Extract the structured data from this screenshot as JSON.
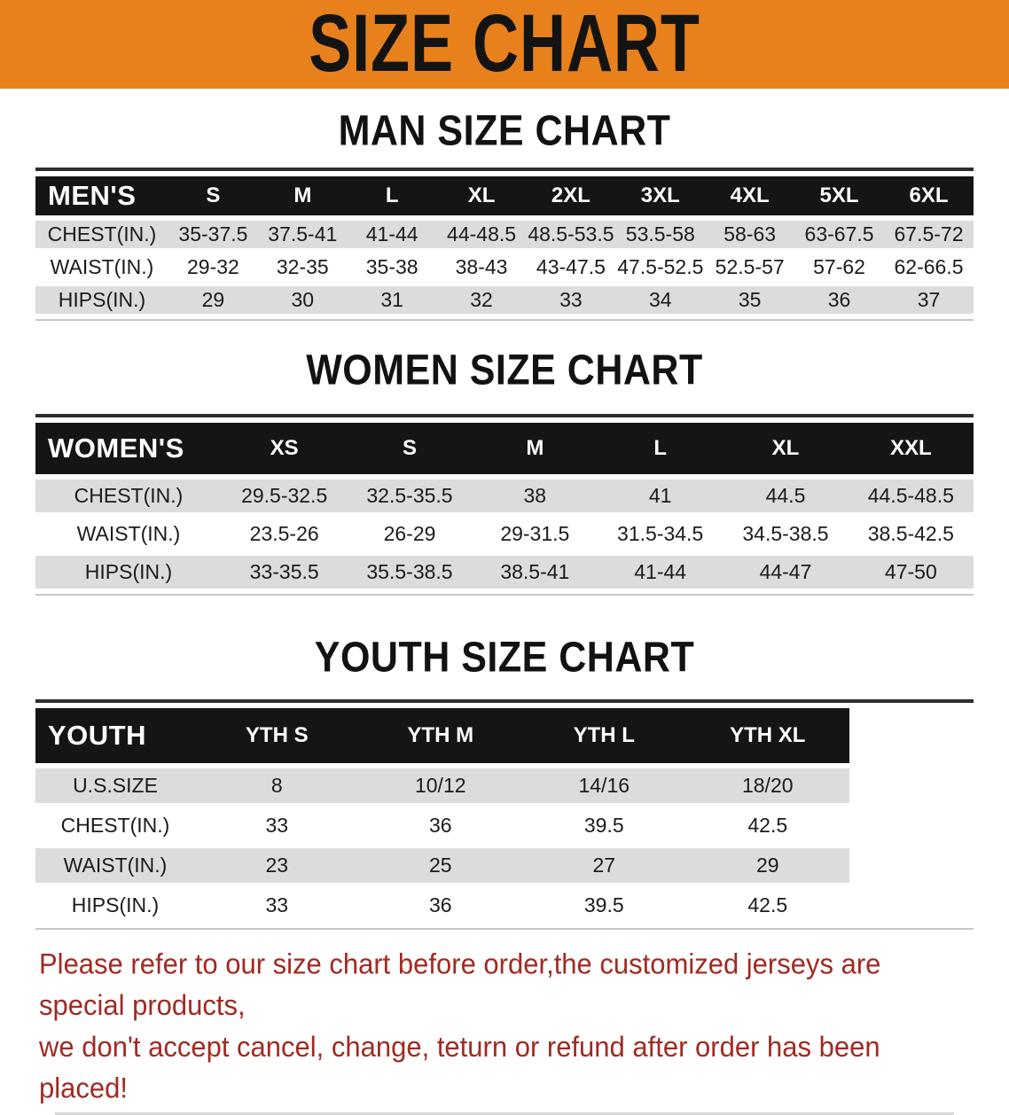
{
  "banner": {
    "title": "SIZE CHART"
  },
  "colors": {
    "banner_bg": "#E8811C",
    "table_header_bg": "#151515",
    "row_stripe": "#DCDCDC",
    "disclaimer_text": "#A12A22"
  },
  "sections": [
    {
      "id": "mens",
      "heading": "MAN SIZE CHART",
      "table": {
        "header_label": "MEN'S",
        "columns": [
          "S",
          "M",
          "L",
          "XL",
          "2XL",
          "3XL",
          "4XL",
          "5XL",
          "6XL"
        ],
        "rows": [
          {
            "label": "CHEST(IN.)",
            "values": [
              "35-37.5",
              "37.5-41",
              "41-44",
              "44-48.5",
              "48.5-53.5",
              "53.5-58",
              "58-63",
              "63-67.5",
              "67.5-72"
            ]
          },
          {
            "label": "WAIST(IN.)",
            "values": [
              "29-32",
              "32-35",
              "35-38",
              "38-43",
              "43-47.5",
              "47.5-52.5",
              "52.5-57",
              "57-62",
              "62-66.5"
            ]
          },
          {
            "label": "HIPS(IN.)",
            "values": [
              "29",
              "30",
              "31",
              "32",
              "33",
              "34",
              "35",
              "36",
              "37"
            ]
          }
        ]
      }
    },
    {
      "id": "womens",
      "heading": "WOMEN SIZE CHART",
      "table": {
        "header_label": "WOMEN'S",
        "columns": [
          "XS",
          "S",
          "M",
          "L",
          "XL",
          "XXL"
        ],
        "rows": [
          {
            "label": "CHEST(IN.)",
            "values": [
              "29.5-32.5",
              "32.5-35.5",
              "38",
              "41",
              "44.5",
              "44.5-48.5"
            ]
          },
          {
            "label": "WAIST(IN.)",
            "values": [
              "23.5-26",
              "26-29",
              "29-31.5",
              "31.5-34.5",
              "34.5-38.5",
              "38.5-42.5"
            ]
          },
          {
            "label": "HIPS(IN.)",
            "values": [
              "33-35.5",
              "35.5-38.5",
              "38.5-41",
              "41-44",
              "44-47",
              "47-50"
            ]
          }
        ]
      }
    },
    {
      "id": "youth",
      "heading": "YOUTH SIZE CHART",
      "table": {
        "header_label": "YOUTH",
        "columns": [
          "YTH S",
          "YTH M",
          "YTH L",
          "YTH XL"
        ],
        "rows": [
          {
            "label": "U.S.SIZE",
            "values": [
              "8",
              "10/12",
              "14/16",
              "18/20"
            ]
          },
          {
            "label": "CHEST(IN.)",
            "values": [
              "33",
              "36",
              "39.5",
              "42.5"
            ]
          },
          {
            "label": "WAIST(IN.)",
            "values": [
              "23",
              "25",
              "27",
              "29"
            ]
          },
          {
            "label": "HIPS(IN.)",
            "values": [
              "33",
              "36",
              "39.5",
              "42.5"
            ]
          }
        ]
      }
    }
  ],
  "disclaimer": {
    "line1": "Please refer to our size chart before order,the customized jerseys are special products,",
    "line2": "we don't accept cancel, change, teturn or refund after order has been placed!"
  }
}
